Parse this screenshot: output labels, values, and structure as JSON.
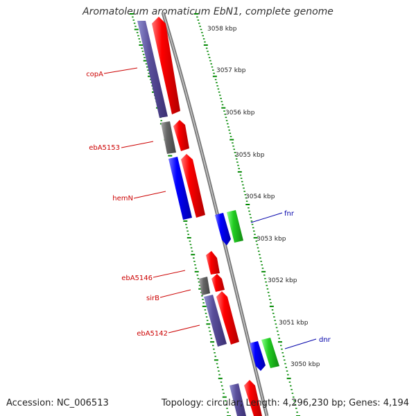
{
  "title": "Aromatoleum aromaticum EbN1, complete genome",
  "footer": {
    "accession": "Accession: NC_006513",
    "stats": "Topology: circular; Length: 4,296,230 bp; Genes: 4,194"
  },
  "colors": {
    "forward": "#ff0000",
    "reverse_cds": "#0000ff",
    "reverse_other": "#00cc00",
    "backbone": "#888888",
    "ticks": "#008800",
    "label_forward": "#cc0000",
    "label_reverse": "#0000aa"
  },
  "ruler": [
    "3058 kbp",
    "3057 kbp",
    "3056 kbp",
    "3055 kbp",
    "3054 kbp",
    "3053 kbp",
    "3052 kbp",
    "3051 kbp",
    "3050 kbp"
  ],
  "gene_labels": [
    {
      "name": "copA",
      "strand": "forward"
    },
    {
      "name": "ebA5153",
      "strand": "forward"
    },
    {
      "name": "hemN",
      "strand": "forward"
    },
    {
      "name": "ebA5146",
      "strand": "forward"
    },
    {
      "name": "sirB",
      "strand": "forward"
    },
    {
      "name": "ebA5142",
      "strand": "forward"
    },
    {
      "name": "fnr",
      "strand": "reverse"
    },
    {
      "name": "dnr",
      "strand": "reverse"
    }
  ]
}
